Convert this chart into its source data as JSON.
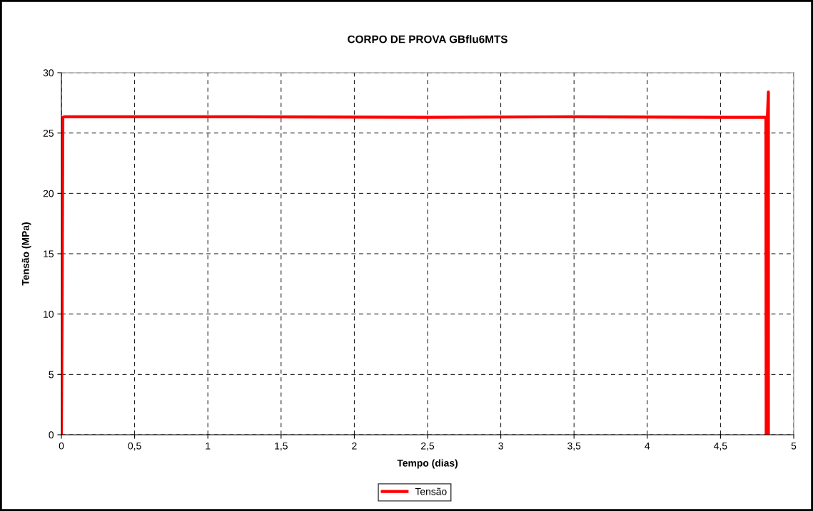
{
  "chart_data": {
    "type": "line",
    "title": "CORPO DE PROVA GBflu6MTS",
    "xlabel": "Tempo (dias)",
    "ylabel": "Tensão (MPa)",
    "series": [
      {
        "name": "Tensão",
        "color": "#ff0000",
        "x": [
          0,
          0.005,
          0.01,
          0.02,
          1.25,
          2.5,
          3.5,
          4.5,
          4.81,
          4.812,
          4.815,
          4.82,
          4.827,
          4.827
        ],
        "values": [
          0,
          10.5,
          26.3,
          26.35,
          26.35,
          26.3,
          26.35,
          26.3,
          26.3,
          0,
          0,
          26.3,
          28.4,
          0
        ]
      }
    ],
    "xlim": [
      0,
      5
    ],
    "xticks": [
      0,
      {
        "value": 0.5,
        "label": "0,5"
      },
      1,
      {
        "value": 1.5,
        "label": "1,5"
      },
      2,
      {
        "value": 2.5,
        "label": "2,5"
      },
      3,
      {
        "value": 3.5,
        "label": "3,5"
      },
      4,
      {
        "value": 4.5,
        "label": "4,5"
      },
      5
    ],
    "ylim": [
      0,
      30
    ],
    "yticks": [
      0,
      5,
      10,
      15,
      20,
      25,
      30
    ],
    "grid": true,
    "legend": "bottom",
    "marker": "none",
    "line_style": "solid"
  }
}
